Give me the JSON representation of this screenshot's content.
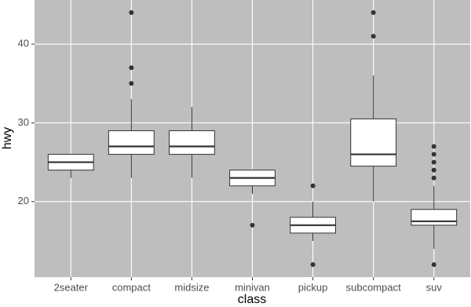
{
  "chart_data": {
    "type": "box",
    "x_label": "class",
    "y_label": "hwy",
    "categories": [
      "2seater",
      "compact",
      "midsize",
      "minivan",
      "pickup",
      "subcompact",
      "suv"
    ],
    "boxes": [
      {
        "min": 23,
        "q1": 24,
        "median": 25,
        "q3": 26,
        "max": 26,
        "outliers": []
      },
      {
        "min": 23,
        "q1": 26,
        "median": 27,
        "q3": 29,
        "max": 33,
        "outliers": [
          35,
          37,
          44
        ]
      },
      {
        "min": 23,
        "q1": 26,
        "median": 27,
        "q3": 29,
        "max": 32,
        "outliers": []
      },
      {
        "min": 21,
        "q1": 22,
        "median": 23,
        "q3": 24,
        "max": 24,
        "outliers": [
          17
        ]
      },
      {
        "min": 15,
        "q1": 16,
        "median": 17,
        "q3": 18,
        "max": 20,
        "outliers": [
          12,
          22
        ]
      },
      {
        "min": 20,
        "q1": 24.5,
        "median": 26,
        "q3": 30.5,
        "max": 36,
        "outliers": [
          41,
          44
        ]
      },
      {
        "min": 14,
        "q1": 17,
        "median": 17.5,
        "q3": 19,
        "max": 22,
        "outliers": [
          12,
          23,
          24,
          25,
          26,
          27
        ]
      }
    ],
    "box_fill": "#ffffff",
    "box_stroke": "#333333",
    "panel_color": "#bebebe",
    "ylim": [
      10.4,
      45.6
    ],
    "yticks": [
      20,
      30,
      40
    ],
    "grid": true
  }
}
